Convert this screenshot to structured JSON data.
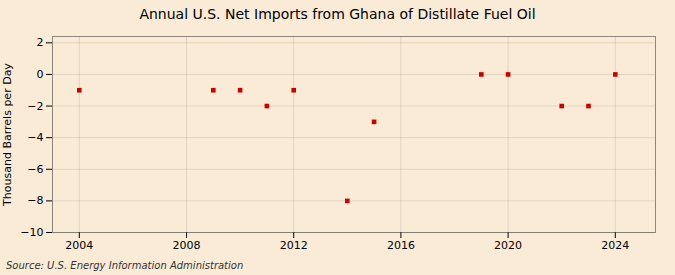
{
  "chart_data": {
    "type": "scatter",
    "title": "Annual U.S. Net Imports from Ghana of Distillate Fuel Oil",
    "ylabel": "Thousand Barrels per Day",
    "source": "Source: U.S. Energy Information Administration",
    "x": [
      2004,
      2009,
      2010,
      2011,
      2012,
      2014,
      2015,
      2019,
      2020,
      2022,
      2023,
      2024
    ],
    "values": [
      -1,
      -1,
      -1,
      -2,
      -1,
      -8,
      -3,
      0,
      0,
      -2,
      -2,
      0
    ],
    "color": "#cc0000",
    "marker": "square",
    "xlim": [
      2003,
      2025.5
    ],
    "ylim": [
      -10,
      2.4
    ],
    "xticks": [
      2004,
      2008,
      2012,
      2016,
      2020,
      2024
    ],
    "yticks": [
      -10,
      -8,
      -6,
      -4,
      -2,
      0,
      2
    ],
    "grid": true
  }
}
